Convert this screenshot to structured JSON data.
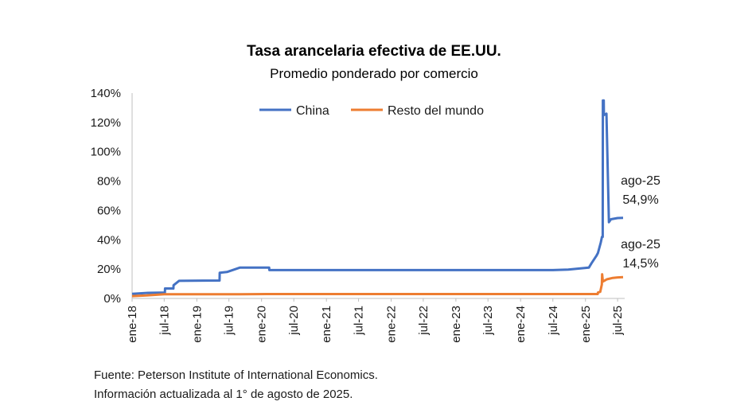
{
  "chart_data": {
    "type": "line",
    "title": "Tasa arancelaria efectiva de EE.UU.",
    "subtitle": "Promedio ponderado por comercio",
    "y_ticks": [
      "0%",
      "20%",
      "40%",
      "60%",
      "80%",
      "100%",
      "120%",
      "140%"
    ],
    "ylim": [
      0,
      140
    ],
    "x_ticks": [
      "ene-18",
      "jul-18",
      "ene-19",
      "jul-19",
      "ene-20",
      "jul-20",
      "ene-21",
      "jul-21",
      "ene-22",
      "jul-22",
      "ene-23",
      "jul-23",
      "ene-24",
      "jul-24",
      "ene-25",
      "jul-25"
    ],
    "x_range": [
      "2018-01",
      "2025-08"
    ],
    "grid": false,
    "legend_position": "top",
    "series": [
      {
        "name": "China",
        "color": "#4472C4",
        "points": [
          [
            "2018-01-01",
            3.1
          ],
          [
            "2018-04-01",
            3.8
          ],
          [
            "2018-07-05",
            4.0
          ],
          [
            "2018-07-06",
            6.8
          ],
          [
            "2018-08-22",
            6.8
          ],
          [
            "2018-08-23",
            9.0
          ],
          [
            "2018-09-23",
            12.0
          ],
          [
            "2019-05-09",
            12.2
          ],
          [
            "2019-05-10",
            17.5
          ],
          [
            "2019-06-20",
            18.0
          ],
          [
            "2019-08-31",
            21.0
          ],
          [
            "2020-02-13",
            21.0
          ],
          [
            "2020-02-14",
            19.3
          ],
          [
            "2024-07-01",
            19.3
          ],
          [
            "2024-09-26",
            19.7
          ],
          [
            "2025-01-20",
            21.0
          ],
          [
            "2025-02-04",
            24.0
          ],
          [
            "2025-03-03",
            29.0
          ],
          [
            "2025-03-12",
            31.0
          ],
          [
            "2025-03-28",
            38.0
          ],
          [
            "2025-04-04",
            42.0
          ],
          [
            "2025-04-08",
            42.0
          ],
          [
            "2025-04-09",
            135.0
          ],
          [
            "2025-04-14",
            135.0
          ],
          [
            "2025-04-15",
            125.0
          ],
          [
            "2025-04-29",
            126.0
          ],
          [
            "2025-05-13",
            52.0
          ],
          [
            "2025-05-25",
            54.0
          ],
          [
            "2025-07-01",
            54.8
          ],
          [
            "2025-08-01",
            54.9
          ]
        ]
      },
      {
        "name": "Resto del mundo",
        "color": "#ED7D31",
        "points": [
          [
            "2018-01-01",
            1.6
          ],
          [
            "2018-03-23",
            2.0
          ],
          [
            "2018-07-01",
            2.8
          ],
          [
            "2019-09-01",
            2.9
          ],
          [
            "2020-02-01",
            3.0
          ],
          [
            "2025-03-11",
            3.0
          ],
          [
            "2025-03-12",
            4.0
          ],
          [
            "2025-03-25",
            4.5
          ],
          [
            "2025-04-03",
            9.5
          ],
          [
            "2025-04-05",
            16.5
          ],
          [
            "2025-04-09",
            11.5
          ],
          [
            "2025-05-01",
            13.0
          ],
          [
            "2025-06-04",
            14.0
          ],
          [
            "2025-07-01",
            14.3
          ],
          [
            "2025-08-01",
            14.5
          ]
        ]
      }
    ],
    "annotations": [
      {
        "series": "China",
        "label_date": "ago-25",
        "label_value": "54,9%"
      },
      {
        "series": "Resto del mundo",
        "label_date": "ago-25",
        "label_value": "14,5%"
      }
    ]
  },
  "footer": {
    "source": "Fuente: Peterson Institute of International Economics.",
    "update": "Información actualizada al 1° de agosto de 2025."
  }
}
